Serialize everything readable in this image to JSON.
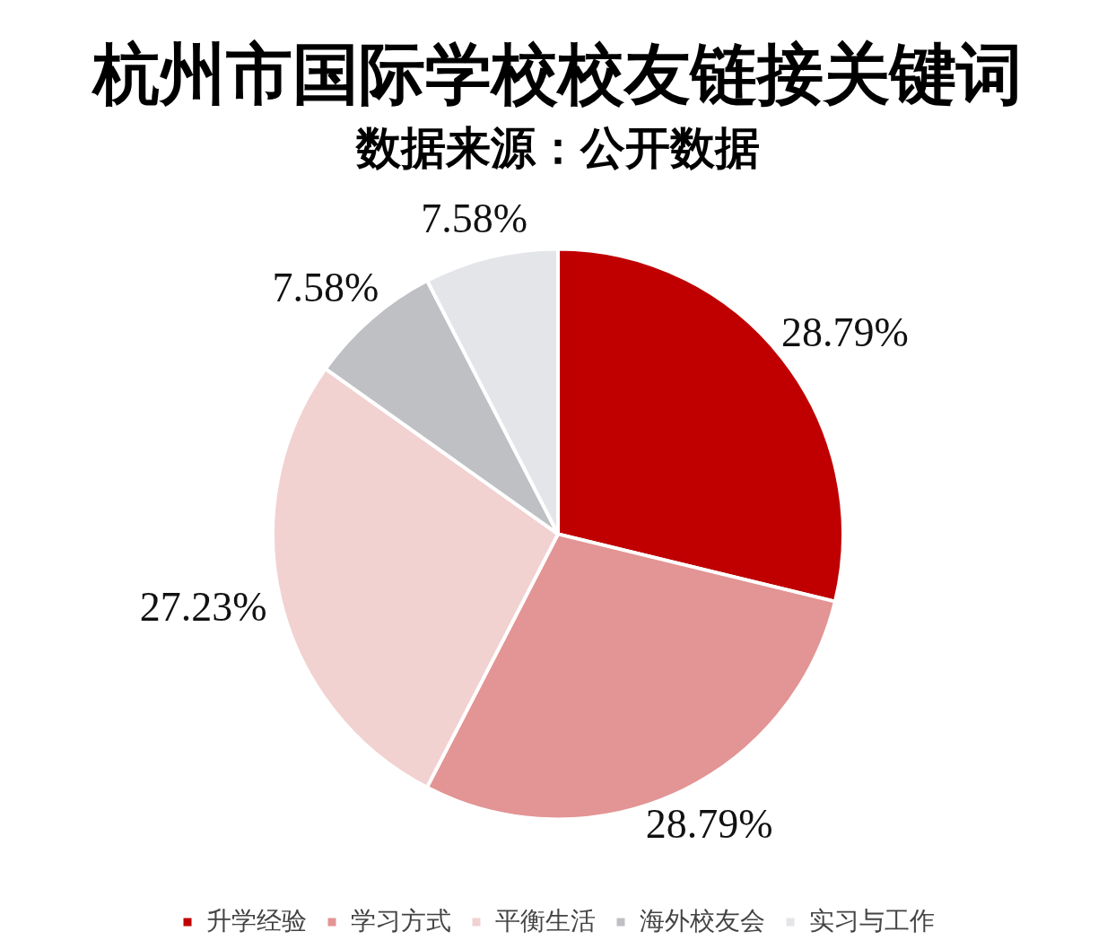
{
  "chart_data": {
    "type": "pie",
    "title": "杭州市国际学校校友链接关键词",
    "subtitle": "数据来源：公开数据",
    "categories": [
      "升学经验",
      "学习方式",
      "平衡生活",
      "海外校友会",
      "实习与工作"
    ],
    "values": [
      28.79,
      28.79,
      27.23,
      7.58,
      7.58
    ],
    "colors": [
      "#c00000",
      "#e39494",
      "#f2d1d1",
      "#bfc0c3",
      "#e4e5e8"
    ],
    "value_labels": [
      "28.79%",
      "28.79%",
      "27.23%",
      "7.58%",
      "7.58%"
    ],
    "legend": "bottom"
  }
}
